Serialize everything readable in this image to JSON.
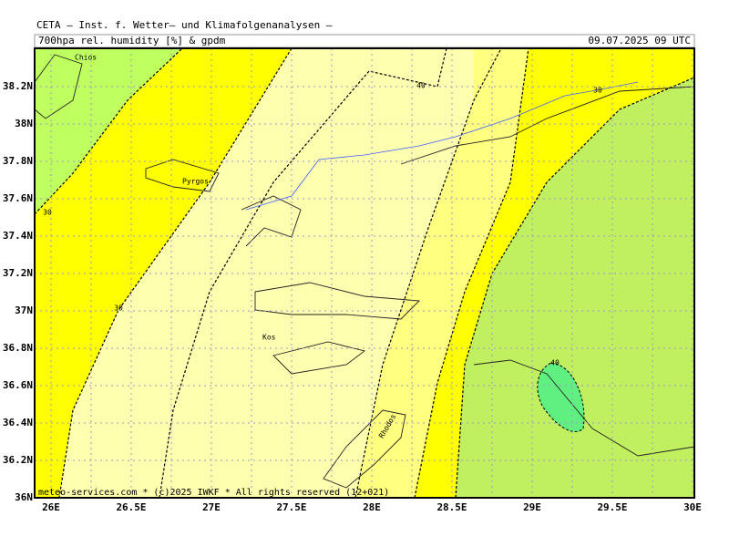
{
  "header": {
    "title": "CETA – Inst. f. Wetter– und Klimafolgenanalysen –",
    "subtitle": "700hpa rel. humidity [%] & gpdm",
    "valid_time": "09.07.2025 09 UTC"
  },
  "map": {
    "lon_ticks": [
      {
        "value": 26,
        "label": "26E"
      },
      {
        "value": 26.5,
        "label": "26.5E"
      },
      {
        "value": 27,
        "label": "27E"
      },
      {
        "value": 27.5,
        "label": "27.5E"
      },
      {
        "value": 28,
        "label": "28E"
      },
      {
        "value": 28.5,
        "label": "28.5E"
      },
      {
        "value": 29,
        "label": "29E"
      },
      {
        "value": 29.5,
        "label": "29.5E"
      },
      {
        "value": 30,
        "label": "30E"
      }
    ],
    "lat_ticks": [
      {
        "value": 36,
        "label": "36N"
      },
      {
        "value": 36.2,
        "label": "36.2N"
      },
      {
        "value": 36.4,
        "label": "36.4N"
      },
      {
        "value": 36.6,
        "label": "36.6N"
      },
      {
        "value": 36.8,
        "label": "36.8N"
      },
      {
        "value": 37,
        "label": "37N"
      },
      {
        "value": 37.2,
        "label": "37.2N"
      },
      {
        "value": 37.4,
        "label": "37.4N"
      },
      {
        "value": 37.6,
        "label": "37.6N"
      },
      {
        "value": 37.8,
        "label": "37.8N"
      },
      {
        "value": 38,
        "label": "38N"
      },
      {
        "value": 38.2,
        "label": "38.2N"
      }
    ],
    "places": [
      "Chios",
      "Pyrgos",
      "Kos",
      "Rhodos"
    ],
    "contour_labels": [
      "40",
      "30",
      "30",
      "30",
      "40"
    ]
  },
  "footer": "meteo-services.com * (c)2025 IWKF * All rights reserved (12+021)"
}
